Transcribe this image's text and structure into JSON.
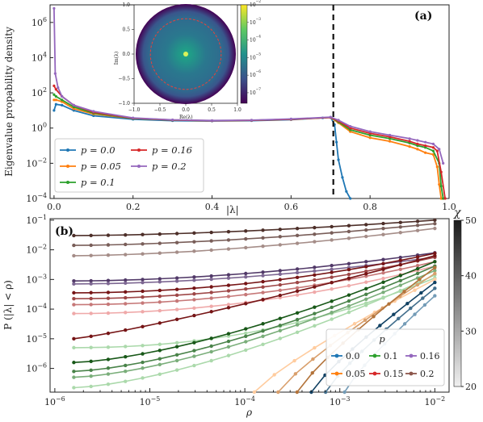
{
  "chart_data": [
    {
      "panel_label": "(a)",
      "type": "line",
      "xlabel": "|λ|",
      "ylabel": "Eigenvalue propability density",
      "xlim": [
        -0.01,
        1.0
      ],
      "ylim_log10": [
        -4,
        7
      ],
      "yscale": "log",
      "x_ticks": [
        "0.0",
        "0.2",
        "0.4",
        "0.6",
        "0.8",
        "1.0"
      ],
      "y_ticks": [
        "10^6",
        "10^4",
        "10^2",
        "10^0",
        "10^-2",
        "10^-4"
      ],
      "vline_x": 0.707,
      "legend_placement": "lower-left",
      "series": [
        {
          "name": "p = 0.0",
          "color": "#1f77b4",
          "x": [
            0.0,
            0.005,
            0.02,
            0.05,
            0.1,
            0.2,
            0.3,
            0.4,
            0.5,
            0.6,
            0.68,
            0.7,
            0.71,
            0.715,
            0.72,
            0.73,
            0.74,
            0.75
          ],
          "log_y": [
            1.0,
            1.35,
            1.3,
            1.0,
            0.7,
            0.5,
            0.42,
            0.4,
            0.42,
            0.48,
            0.58,
            0.62,
            0.2,
            -0.8,
            -1.8,
            -2.8,
            -3.6,
            -4.0
          ]
        },
        {
          "name": "p = 0.05",
          "color": "#ff7f0e",
          "x": [
            0.0,
            0.005,
            0.02,
            0.05,
            0.1,
            0.2,
            0.3,
            0.4,
            0.5,
            0.6,
            0.7,
            0.72,
            0.75,
            0.8,
            0.85,
            0.9,
            0.92,
            0.94,
            0.96,
            0.97,
            0.975,
            0.98,
            0.985
          ],
          "log_y": [
            1.6,
            1.6,
            1.5,
            1.1,
            0.8,
            0.55,
            0.45,
            0.42,
            0.44,
            0.5,
            0.6,
            0.3,
            -0.2,
            -0.55,
            -0.75,
            -1.05,
            -1.2,
            -1.4,
            -1.5,
            -2.2,
            -3.2,
            -4.0,
            -4.0
          ]
        },
        {
          "name": "p = 0.1",
          "color": "#2ca02c",
          "x": [
            0.0,
            0.005,
            0.02,
            0.05,
            0.1,
            0.2,
            0.3,
            0.4,
            0.5,
            0.6,
            0.7,
            0.72,
            0.75,
            0.8,
            0.85,
            0.9,
            0.92,
            0.94,
            0.96,
            0.975,
            0.98,
            0.985
          ],
          "log_y": [
            1.9,
            1.8,
            1.6,
            1.2,
            0.85,
            0.55,
            0.45,
            0.42,
            0.44,
            0.5,
            0.6,
            0.35,
            -0.1,
            -0.4,
            -0.6,
            -0.85,
            -1.0,
            -1.1,
            -1.3,
            -2.0,
            -3.3,
            -4.0
          ]
        },
        {
          "name": "p = 0.16",
          "color": "#d62728",
          "x": [
            0.0,
            0.005,
            0.02,
            0.05,
            0.1,
            0.2,
            0.3,
            0.4,
            0.5,
            0.6,
            0.7,
            0.72,
            0.75,
            0.8,
            0.85,
            0.9,
            0.92,
            0.94,
            0.96,
            0.97,
            0.98,
            0.99
          ],
          "log_y": [
            2.4,
            2.2,
            1.8,
            1.3,
            0.9,
            0.56,
            0.46,
            0.42,
            0.44,
            0.5,
            0.6,
            0.4,
            0.0,
            -0.3,
            -0.5,
            -0.75,
            -0.9,
            -1.0,
            -1.1,
            -1.3,
            -2.5,
            -4.0
          ]
        },
        {
          "name": "p = 0.2",
          "color": "#9467bd",
          "x": [
            0.0,
            0.003,
            0.01,
            0.02,
            0.05,
            0.1,
            0.2,
            0.3,
            0.4,
            0.5,
            0.6,
            0.7,
            0.72,
            0.75,
            0.8,
            0.85,
            0.9,
            0.92,
            0.94,
            0.96,
            0.975,
            0.985
          ],
          "log_y": [
            6.8,
            3.1,
            2.3,
            1.8,
            1.3,
            0.95,
            0.58,
            0.47,
            0.43,
            0.45,
            0.52,
            0.62,
            0.45,
            0.1,
            -0.2,
            -0.4,
            -0.6,
            -0.7,
            -0.8,
            -0.9,
            -1.2,
            -2.0
          ]
        }
      ],
      "inset": {
        "type": "heatmap",
        "xlabel": "Re(λ)",
        "ylabel": "Im(λ)",
        "x_ticks": [
          "−1.0",
          "−0.5",
          "0.0",
          "0.5",
          "1.0"
        ],
        "y_ticks": [
          "1.0",
          "0.5",
          "0.0",
          "−0.5",
          "−1.0"
        ],
        "inner_circle_radius": 0.707,
        "outer_radius": 1.0,
        "colorbar_ticks": [
          "10^-2",
          "10^-3",
          "10^-4",
          "10^-5",
          "10^-6",
          "10^-7"
        ],
        "colorbar_log10_range": [
          -7.6,
          -2
        ]
      }
    },
    {
      "panel_label": "(b)",
      "type": "line",
      "xlabel": "ρ",
      "ylabel": "P (|λ| < ρ)",
      "xscale": "log",
      "yscale": "log",
      "xlim_log10": [
        -6.05,
        -1.85
      ],
      "ylim_log10": [
        -6.8,
        -0.95
      ],
      "x_ticks": [
        "10^-6",
        "10^-5",
        "10^-4",
        "10^-3",
        "10^-2"
      ],
      "y_ticks": [
        "10^-1",
        "10^-2",
        "10^-3",
        "10^-4",
        "10^-5",
        "10^-6"
      ],
      "legend_title": "p",
      "legend_placement": "lower-right",
      "legend": [
        {
          "name": "0.0",
          "color": "#1f77b4"
        },
        {
          "name": "0.1",
          "color": "#2ca02c"
        },
        {
          "name": "0.16",
          "color": "#9467bd"
        },
        {
          "name": "0.05",
          "color": "#ff7f0e"
        },
        {
          "name": "0.15",
          "color": "#d62728"
        },
        {
          "name": "0.2",
          "color": "#8c564b"
        }
      ],
      "colorbar_label": "χ",
      "colorbar_range": [
        20,
        50
      ],
      "colorbar_ticks": [
        "50",
        "40",
        "30",
        "20"
      ],
      "x_range_log10": [
        -5.8,
        -2
      ],
      "series": [
        {
          "name": "0.2",
          "color": "#8c564b",
          "chi": 50,
          "log_y_start": -1.52,
          "log_y_end": -1.0,
          "bend": 0.4
        },
        {
          "name": "0.2",
          "color": "#8c564b",
          "chi": 40,
          "log_y_start": -1.85,
          "log_y_end": -1.12,
          "bend": 0.4
        },
        {
          "name": "0.2",
          "color": "#8c564b",
          "chi": 30,
          "log_y_start": -2.2,
          "log_y_end": -1.28,
          "bend": 0.4
        },
        {
          "name": "0.16",
          "color": "#9467bd",
          "chi": 50,
          "log_y_start": -3.05,
          "log_y_end": -2.1,
          "bend": 0.5
        },
        {
          "name": "0.16",
          "color": "#9467bd",
          "chi": 40,
          "log_y_start": -3.15,
          "log_y_end": -2.25,
          "bend": 0.5
        },
        {
          "name": "0.15",
          "color": "#d62728",
          "chi": 50,
          "log_y_start": -3.45,
          "log_y_end": -2.12,
          "bend": 0.6
        },
        {
          "name": "0.15",
          "color": "#d62728",
          "chi": 40,
          "log_y_start": -3.65,
          "log_y_end": -2.25,
          "bend": 0.6
        },
        {
          "name": "0.15",
          "color": "#d62728",
          "chi": 30,
          "log_y_start": -3.85,
          "log_y_end": -2.4,
          "bend": 0.6
        },
        {
          "name": "0.15",
          "color": "#d62728",
          "chi": 20,
          "log_y_start": -4.15,
          "log_y_end": -2.55,
          "bend": 0.6
        },
        {
          "name": "0.15",
          "color": "#d62728",
          "chi": 50,
          "log_y_start": -5.0,
          "log_y_end": -2.2,
          "bend": 0.1
        },
        {
          "name": "0.1",
          "color": "#2ca02c",
          "chi": 20,
          "log_y_start": -5.3,
          "log_y_end": -2.95,
          "bend": 0.7
        },
        {
          "name": "0.1",
          "color": "#2ca02c",
          "chi": 50,
          "log_y_start": -5.8,
          "log_y_end": -2.4,
          "bend": 0.3
        },
        {
          "name": "0.1",
          "color": "#2ca02c",
          "chi": 40,
          "log_y_start": -6.1,
          "log_y_end": -2.55,
          "bend": 0.3
        },
        {
          "name": "0.1",
          "color": "#2ca02c",
          "chi": 30,
          "log_y_start": -6.3,
          "log_y_end": -2.7,
          "bend": 0.3
        },
        {
          "name": "0.1",
          "color": "#2ca02c",
          "chi": 20,
          "log_y_start": -6.65,
          "log_y_end": -2.85,
          "bend": 0.3
        }
      ],
      "steep_series": [
        {
          "name": "0.05",
          "color": "#ff7f0e",
          "chi": 20,
          "x_log10": [
            -3.9,
            -2.0
          ],
          "log_y": [
            -6.8,
            -3.0
          ]
        },
        {
          "name": "0.05",
          "color": "#ff7f0e",
          "chi": 30,
          "x_log10": [
            -3.65,
            -2.0
          ],
          "log_y": [
            -6.8,
            -2.8
          ]
        },
        {
          "name": "0.05",
          "color": "#ff7f0e",
          "chi": 40,
          "x_log10": [
            -3.45,
            -2.0
          ],
          "log_y": [
            -6.8,
            -2.6
          ]
        },
        {
          "name": "0.0",
          "color": "#1f77b4",
          "chi": 50,
          "x_log10": [
            -3.3,
            -2.0
          ],
          "log_y": [
            -6.8,
            -3.1
          ]
        },
        {
          "name": "0.0",
          "color": "#1f77b4",
          "chi": 40,
          "x_log10": [
            -3.15,
            -2.0
          ],
          "log_y": [
            -6.8,
            -3.3
          ]
        },
        {
          "name": "0.0",
          "color": "#1f77b4",
          "chi": 30,
          "x_log10": [
            -2.95,
            -2.0
          ],
          "log_y": [
            -6.8,
            -3.55
          ]
        }
      ]
    }
  ]
}
